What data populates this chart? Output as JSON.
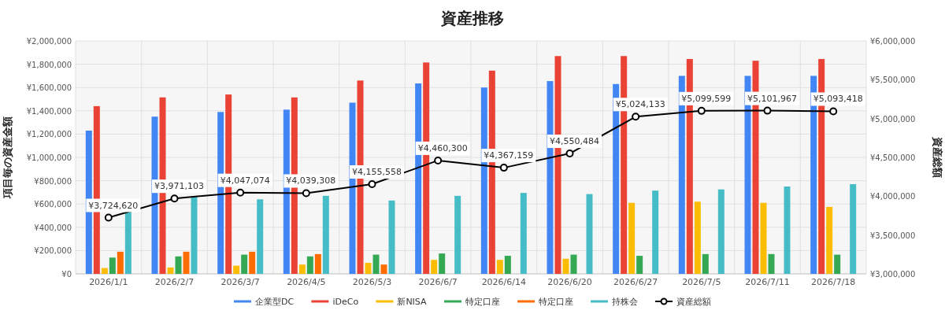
{
  "chart_data": {
    "type": "bar",
    "title": "資産推移",
    "ylabel": "項目毎の資産金額",
    "y2label": "資産総額",
    "categories": [
      "2026/1/1",
      "2026/2/7",
      "2026/3/7",
      "2026/4/5",
      "2026/5/3",
      "2026/6/7",
      "2026/6/14",
      "2026/6/20",
      "2026/6/27",
      "2026/7/5",
      "2026/7/11",
      "2026/7/18"
    ],
    "series": [
      {
        "name": "企業型DC",
        "color": "#4285f4",
        "values": [
          1230000,
          1350000,
          1390000,
          1410000,
          1470000,
          1635000,
          1600000,
          1655000,
          1630000,
          1700000,
          1700000,
          1700000
        ]
      },
      {
        "name": "iDeCo",
        "color": "#ea4335",
        "values": [
          1440000,
          1515000,
          1540000,
          1515000,
          1660000,
          1815000,
          1745000,
          1870000,
          1870000,
          1845000,
          1830000,
          1845000
        ]
      },
      {
        "name": "新NISA",
        "color": "#fbbc04",
        "values": [
          50000,
          55000,
          70000,
          80000,
          95000,
          120000,
          120000,
          130000,
          610000,
          620000,
          610000,
          575000
        ]
      },
      {
        "name": "特定口座",
        "color": "#34a853",
        "values": [
          140000,
          150000,
          165000,
          150000,
          165000,
          175000,
          155000,
          165000,
          155000,
          170000,
          170000,
          165000
        ]
      },
      {
        "name": "特定口座",
        "color": "#ff6d01",
        "values": [
          190000,
          190000,
          190000,
          170000,
          80000,
          null,
          null,
          null,
          null,
          null,
          null,
          null
        ]
      },
      {
        "name": "持株会",
        "color": "#46bdc6",
        "values": [
          540000,
          660000,
          640000,
          670000,
          630000,
          670000,
          695000,
          685000,
          715000,
          725000,
          750000,
          770000
        ]
      },
      {
        "name": "資産総額",
        "type": "line",
        "axis": "y2",
        "color": "#000000",
        "marker": "circle",
        "values": [
          3724620,
          3971103,
          4047074,
          4039308,
          4155558,
          4460300,
          4367159,
          4550484,
          5024133,
          5099599,
          5101967,
          5093418
        ],
        "value_labels": [
          "¥3,724,620",
          "¥3,971,103",
          "¥4,047,074",
          "¥4,039,308",
          "¥4,155,558",
          "¥4,460,300",
          "¥4,367,159",
          "¥4,550,484",
          "¥5,024,133",
          "¥5,099,599",
          "¥5,101,967",
          "¥5,093,418"
        ]
      }
    ],
    "ylim": [
      0,
      2000000
    ],
    "yticks": [
      {
        "value": 0,
        "label": "¥0"
      },
      {
        "value": 200000,
        "label": "¥200,000"
      },
      {
        "value": 400000,
        "label": "¥400,000"
      },
      {
        "value": 600000,
        "label": "¥600,000"
      },
      {
        "value": 800000,
        "label": "¥800,000"
      },
      {
        "value": 1000000,
        "label": "¥1,000,000"
      },
      {
        "value": 1200000,
        "label": "¥1,200,000"
      },
      {
        "value": 1400000,
        "label": "¥1,400,000"
      },
      {
        "value": 1600000,
        "label": "¥1,600,000"
      },
      {
        "value": 1800000,
        "label": "¥1,800,000"
      },
      {
        "value": 2000000,
        "label": "¥2,000,000"
      }
    ],
    "y2lim": [
      3000000,
      6000000
    ],
    "y2ticks": [
      {
        "value": 3000000,
        "label": "¥3,000,000"
      },
      {
        "value": 3500000,
        "label": "¥3,500,000"
      },
      {
        "value": 4000000,
        "label": "¥4,000,000"
      },
      {
        "value": 4500000,
        "label": "¥4,500,000"
      },
      {
        "value": 5000000,
        "label": "¥5,000,000"
      },
      {
        "value": 5500000,
        "label": "¥5,500,000"
      },
      {
        "value": 6000000,
        "label": "¥6,000,000"
      }
    ],
    "grid": true,
    "legend": "bottom"
  }
}
